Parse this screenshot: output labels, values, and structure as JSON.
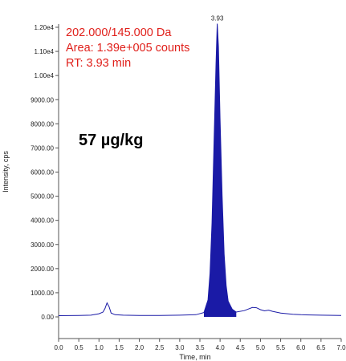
{
  "chart_data": {
    "type": "line",
    "xlabel": "Time, min",
    "ylabel": "Intensity, cps",
    "xlim": [
      0.0,
      7.0
    ],
    "ylim": [
      0,
      12000
    ],
    "x_ticks": [
      "0.0",
      "0.5",
      "1.0",
      "1.5",
      "2.0",
      "2.5",
      "3.0",
      "3.5",
      "4.0",
      "4.5",
      "5.0",
      "5.5",
      "6.0",
      "6.5",
      "7.0"
    ],
    "y_ticks": [
      {
        "value": 0,
        "label": "0.00"
      },
      {
        "value": 1000,
        "label": "1000.00"
      },
      {
        "value": 2000,
        "label": "2000.00"
      },
      {
        "value": 3000,
        "label": "3000.00"
      },
      {
        "value": 4000,
        "label": "4000.00"
      },
      {
        "value": 5000,
        "label": "5000.00"
      },
      {
        "value": 6000,
        "label": "6000.00"
      },
      {
        "value": 7000,
        "label": "7000.00"
      },
      {
        "value": 8000,
        "label": "8000.00"
      },
      {
        "value": 9000,
        "label": "9000.00"
      },
      {
        "value": 10000,
        "label": "1.00e4"
      },
      {
        "value": 11000,
        "label": "1.10e4"
      },
      {
        "value": 12000,
        "label": "1.20e4"
      }
    ],
    "grid": false,
    "series": [
      {
        "color": "#1a1aa6",
        "fill": true,
        "points": [
          [
            0.0,
            50
          ],
          [
            0.5,
            60
          ],
          [
            0.8,
            70
          ],
          [
            1.0,
            130
          ],
          [
            1.1,
            200
          ],
          [
            1.15,
            350
          ],
          [
            1.2,
            580
          ],
          [
            1.25,
            420
          ],
          [
            1.3,
            160
          ],
          [
            1.4,
            90
          ],
          [
            1.6,
            70
          ],
          [
            2.0,
            60
          ],
          [
            2.5,
            60
          ],
          [
            3.0,
            70
          ],
          [
            3.4,
            90
          ],
          [
            3.6,
            180
          ],
          [
            3.7,
            700
          ],
          [
            3.75,
            1800
          ],
          [
            3.8,
            3900
          ],
          [
            3.85,
            7200
          ],
          [
            3.9,
            10500
          ],
          [
            3.93,
            12150
          ],
          [
            3.96,
            11200
          ],
          [
            4.0,
            8200
          ],
          [
            4.05,
            5000
          ],
          [
            4.1,
            2600
          ],
          [
            4.15,
            1300
          ],
          [
            4.2,
            650
          ],
          [
            4.3,
            320
          ],
          [
            4.4,
            200
          ],
          [
            4.6,
            260
          ],
          [
            4.8,
            390
          ],
          [
            4.9,
            380
          ],
          [
            5.0,
            300
          ],
          [
            5.1,
            250
          ],
          [
            5.2,
            280
          ],
          [
            5.3,
            230
          ],
          [
            5.5,
            160
          ],
          [
            5.8,
            110
          ],
          [
            6.0,
            90
          ],
          [
            6.5,
            70
          ],
          [
            7.0,
            60
          ]
        ]
      }
    ],
    "peak_label": {
      "x": 3.93,
      "y": 12150,
      "text": "3.93"
    },
    "annotations": {
      "transition": "202.000/145.000 Da",
      "area": "Area: 1.39e+005 counts",
      "rt": "RT: 3.93 min",
      "concentration": "57 µg/kg"
    }
  }
}
